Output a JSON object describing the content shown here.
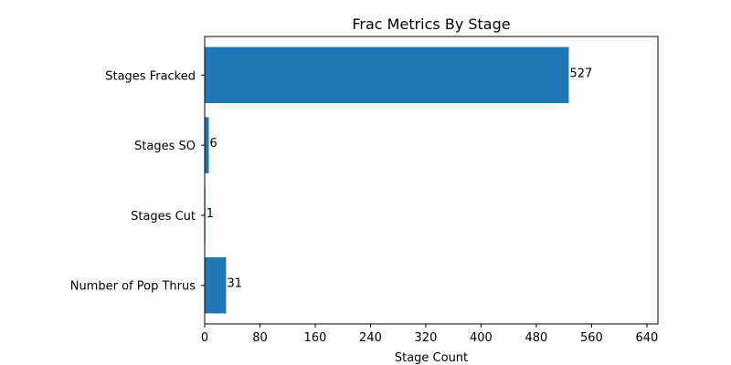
{
  "chart_data": {
    "type": "bar",
    "orientation": "horizontal",
    "title": "Frac Metrics By Stage",
    "xlabel": "Stage Count",
    "ylabel": "",
    "categories": [
      "Stages Fracked",
      "Stages SO",
      "Stages Cut",
      "Number of Pop Thrus"
    ],
    "values": [
      527,
      6,
      1,
      31
    ],
    "data_labels": [
      "527",
      "6",
      "1",
      "31"
    ],
    "xlim": [
      0,
      656
    ],
    "xticks": [
      0,
      80,
      160,
      240,
      320,
      400,
      480,
      560,
      640
    ],
    "bar_color": "#1f77b4",
    "grid": false,
    "legend": "none"
  }
}
